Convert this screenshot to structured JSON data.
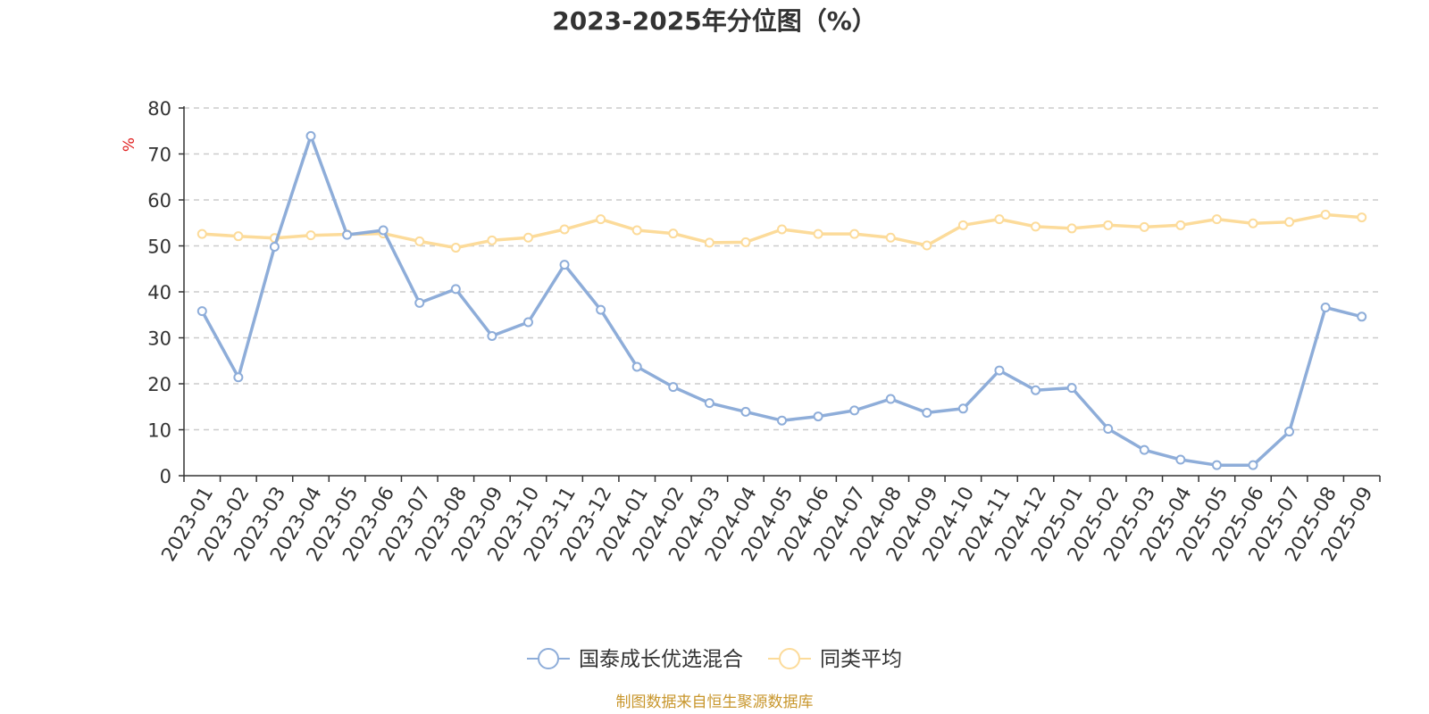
{
  "chart_data": {
    "type": "line",
    "title": "2023-2025年分位图（%）",
    "ylabel": "%",
    "ylim": [
      0,
      80
    ],
    "yticks": [
      0,
      10,
      20,
      30,
      40,
      50,
      60,
      70,
      80
    ],
    "grid": true,
    "legend": "bottom-center",
    "categories": [
      "2023-01",
      "2023-02",
      "2023-03",
      "2023-04",
      "2023-05",
      "2023-06",
      "2023-07",
      "2023-08",
      "2023-09",
      "2023-10",
      "2023-11",
      "2023-12",
      "2024-01",
      "2024-02",
      "2024-03",
      "2024-04",
      "2024-05",
      "2024-06",
      "2024-07",
      "2024-08",
      "2024-09",
      "2024-10",
      "2024-11",
      "2024-12",
      "2025-01",
      "2025-02",
      "2025-03",
      "2025-04",
      "2025-05",
      "2025-06",
      "2025-07",
      "2025-08",
      "2025-09"
    ],
    "series": [
      {
        "name": "国泰成长优选混合",
        "color": "#8eadd9",
        "values": [
          35.8,
          21.4,
          49.8,
          73.9,
          52.4,
          53.4,
          37.6,
          40.6,
          30.4,
          33.4,
          45.9,
          36.1,
          23.7,
          19.3,
          15.8,
          13.9,
          12.0,
          12.9,
          14.2,
          16.7,
          13.7,
          14.6,
          22.9,
          18.6,
          19.1,
          10.2,
          5.6,
          3.5,
          2.3,
          2.3,
          9.6,
          36.6,
          34.6
        ]
      },
      {
        "name": "同类平均",
        "color": "#fcdb9a",
        "values": [
          52.6,
          52.1,
          51.7,
          52.3,
          52.5,
          52.7,
          51.0,
          49.6,
          51.2,
          51.8,
          53.6,
          55.8,
          53.4,
          52.7,
          50.7,
          50.8,
          53.6,
          52.6,
          52.6,
          51.8,
          50.1,
          54.5,
          55.8,
          54.2,
          53.8,
          54.5,
          54.1,
          54.5,
          55.8,
          54.9,
          55.2,
          56.8,
          56.2
        ]
      }
    ],
    "source": "制图数据来自恒生聚源数据库"
  }
}
